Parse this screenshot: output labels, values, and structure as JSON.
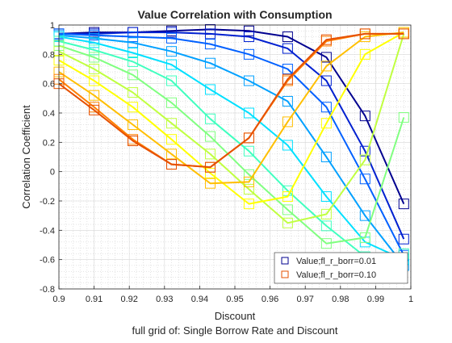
{
  "chart_data": {
    "type": "line",
    "title": "Value Correlation with Consumption",
    "xlabel": "Discount",
    "ylabel": "Correlation Coefficient",
    "caption": "full grid of: Single Borrow Rate and Discount",
    "xlim": [
      0.9,
      1.0
    ],
    "ylim": [
      -0.8,
      1.0
    ],
    "xticks": [
      "0.9",
      "0.91",
      "0.92",
      "0.93",
      "0.94",
      "0.95",
      "0.96",
      "0.97",
      "0.98",
      "0.99",
      "1"
    ],
    "yticks": [
      "-0.8",
      "-0.6",
      "-0.4",
      "-0.2",
      "0",
      "0.2",
      "0.4",
      "0.6",
      "0.8",
      "1"
    ],
    "x": [
      0.9,
      0.91,
      0.921,
      0.932,
      0.943,
      0.954,
      0.965,
      0.976,
      0.987,
      0.998
    ],
    "grid": "minor dotted",
    "legend_position": "bottom-right",
    "legend_entries": [
      "Value;fl_r_borr=0.01",
      "Value;fl_r_borr=0.10"
    ],
    "series": [
      {
        "color": "#00008f",
        "values": [
          0.94,
          0.95,
          0.95,
          0.96,
          0.97,
          0.96,
          0.92,
          0.78,
          0.38,
          -0.22
        ]
      },
      {
        "color": "#0020d0",
        "values": [
          0.94,
          0.94,
          0.95,
          0.95,
          0.94,
          0.92,
          0.84,
          0.62,
          0.14,
          -0.46
        ]
      },
      {
        "color": "#0060ff",
        "values": [
          0.94,
          0.93,
          0.92,
          0.91,
          0.87,
          0.8,
          0.7,
          0.44,
          -0.05,
          -0.57
        ]
      },
      {
        "color": "#00a0ff",
        "values": [
          0.93,
          0.91,
          0.88,
          0.82,
          0.74,
          0.62,
          0.48,
          0.1,
          -0.3,
          -0.64
        ]
      },
      {
        "color": "#00e0ff",
        "values": [
          0.92,
          0.88,
          0.81,
          0.73,
          0.56,
          0.4,
          0.18,
          -0.17,
          -0.48,
          -0.6
        ]
      },
      {
        "color": "#40ffbf",
        "values": [
          0.89,
          0.83,
          0.75,
          0.62,
          0.36,
          0.14,
          -0.13,
          -0.37,
          -0.58,
          -0.56
        ]
      },
      {
        "color": "#80ff80",
        "values": [
          0.86,
          0.78,
          0.66,
          0.47,
          0.24,
          -0.02,
          -0.26,
          -0.49,
          -0.45,
          0.37
        ]
      },
      {
        "color": "#c0ff40",
        "values": [
          0.82,
          0.7,
          0.54,
          0.33,
          0.12,
          -0.12,
          -0.35,
          -0.29,
          0.08,
          0.94
        ]
      },
      {
        "color": "#ffff00",
        "values": [
          0.76,
          0.62,
          0.44,
          0.22,
          -0.01,
          -0.22,
          -0.17,
          0.33,
          0.8,
          0.95
        ]
      },
      {
        "color": "#ffbf00",
        "values": [
          0.68,
          0.52,
          0.32,
          0.12,
          -0.08,
          -0.07,
          0.34,
          0.72,
          0.92,
          0.95
        ]
      },
      {
        "color": "#ff8000",
        "values": [
          0.63,
          0.44,
          0.22,
          0.05,
          0.03,
          0.23,
          0.62,
          0.89,
          0.94,
          0.94
        ]
      },
      {
        "color": "#e65000",
        "values": [
          0.6,
          0.42,
          0.21,
          0.05,
          0.03,
          0.23,
          0.63,
          0.9,
          0.94,
          0.94
        ]
      }
    ]
  }
}
